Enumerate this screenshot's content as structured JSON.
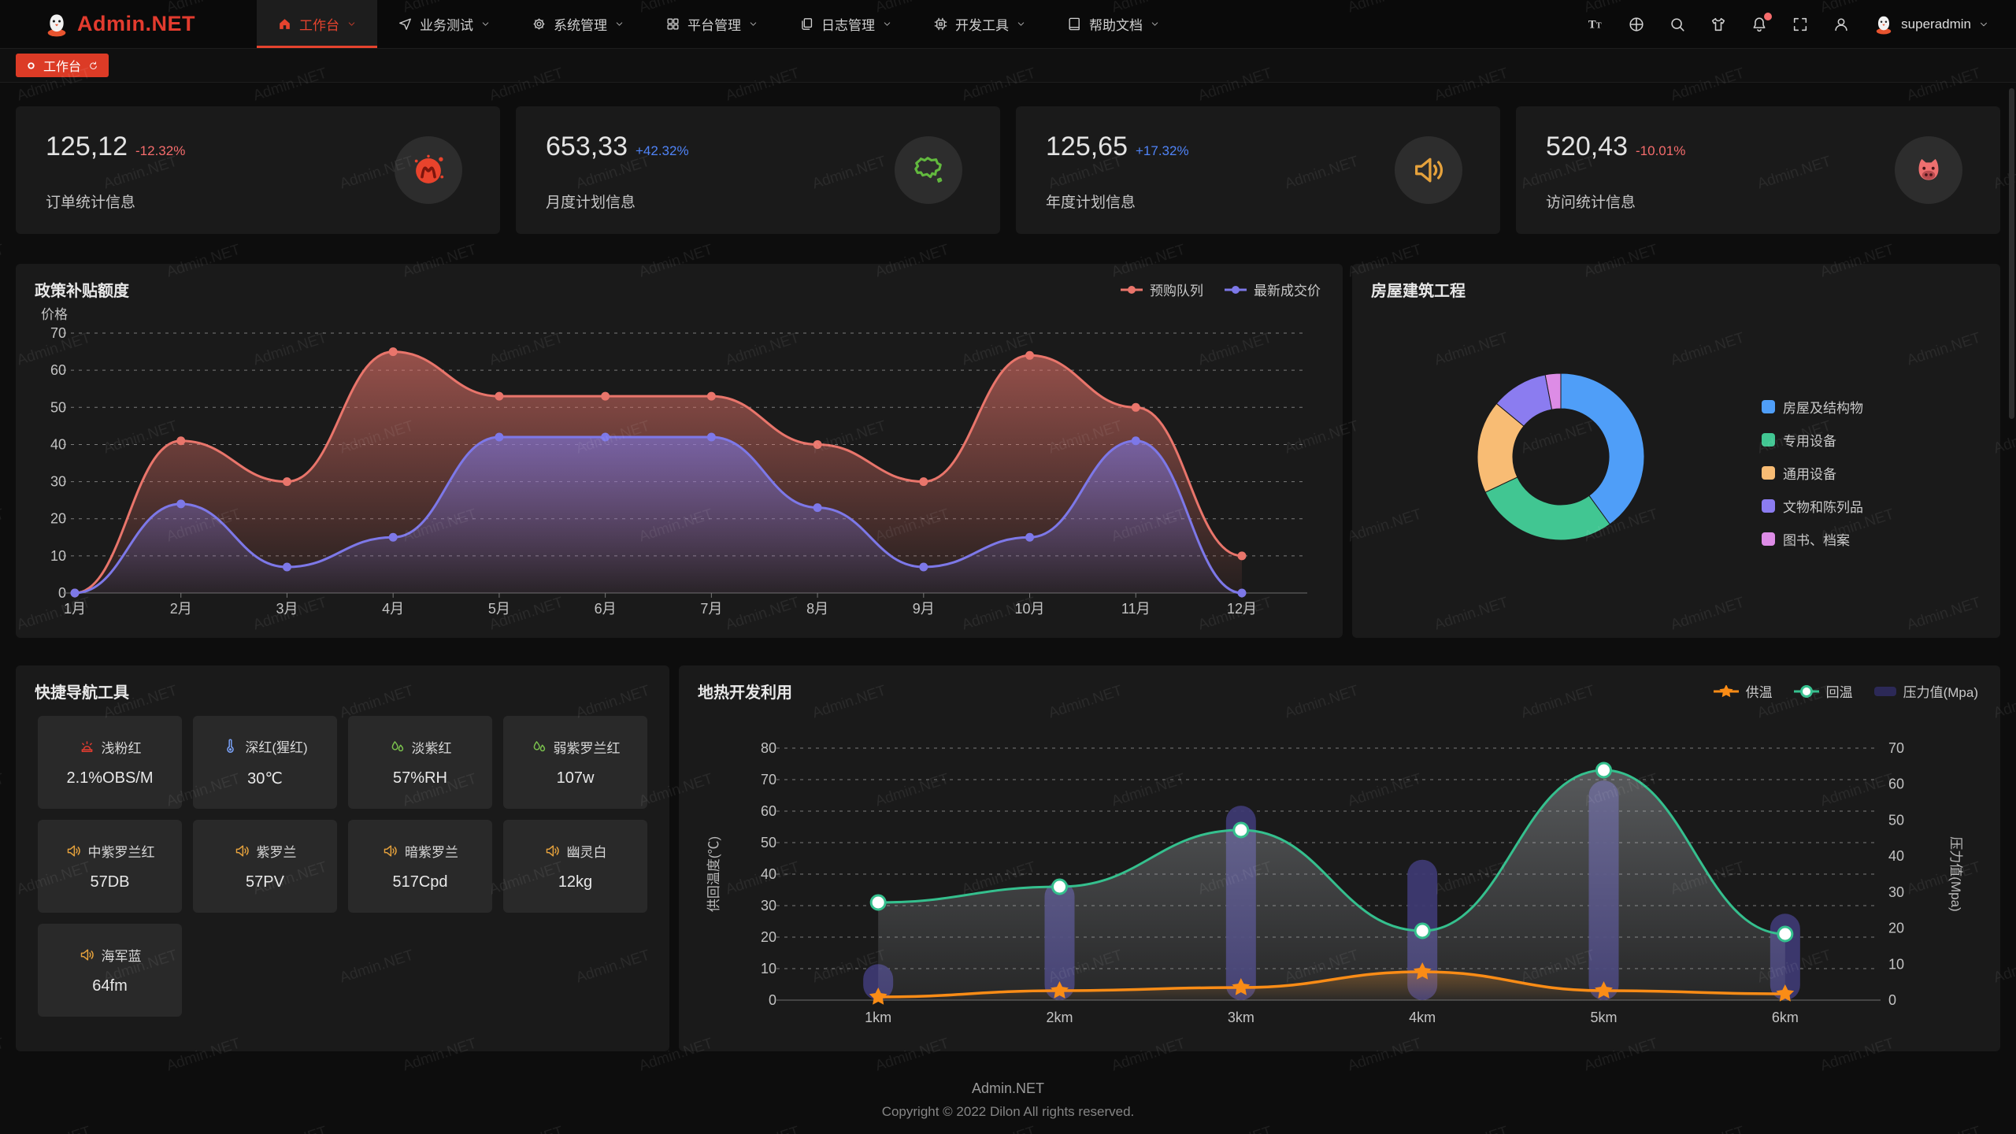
{
  "nav": {
    "logo_text": "Admin.NET",
    "logo_icon": "penguin",
    "user": "superadmin",
    "items": [
      {
        "label": "工作台",
        "icon": "home",
        "active": true
      },
      {
        "label": "业务测试",
        "icon": "send",
        "active": false
      },
      {
        "label": "系统管理",
        "icon": "gear",
        "active": false
      },
      {
        "label": "平台管理",
        "icon": "grid",
        "active": false
      },
      {
        "label": "日志管理",
        "icon": "copy",
        "active": false
      },
      {
        "label": "开发工具",
        "icon": "chip",
        "active": false
      },
      {
        "label": "帮助文档",
        "icon": "book",
        "active": false
      }
    ],
    "right_icons": [
      {
        "name": "font-size-icon",
        "icon": "fontsize",
        "badge": false
      },
      {
        "name": "language-icon",
        "icon": "language",
        "badge": false
      },
      {
        "name": "search-icon",
        "icon": "search",
        "badge": false
      },
      {
        "name": "theme-icon",
        "icon": "tshirt",
        "badge": false
      },
      {
        "name": "notification-icon",
        "icon": "bell",
        "badge": true
      },
      {
        "name": "fullscreen-icon",
        "icon": "fullscreen",
        "badge": false
      },
      {
        "name": "profile-icon",
        "icon": "user",
        "badge": false
      }
    ]
  },
  "tabbar": {
    "tabs": [
      {
        "label": "工作台",
        "dot_icon": "ring",
        "refresh_icon": "refresh",
        "active": true
      }
    ]
  },
  "stat_cards": [
    {
      "value": "125,12",
      "delta": "-12.32%",
      "delta_color": "#f56c6c",
      "label": "订单统计信息",
      "icon": "meetup",
      "icon_color": "#e8432c"
    },
    {
      "value": "653,33",
      "delta": "+42.32%",
      "delta_color": "#4f83f6",
      "label": "月度计划信息",
      "icon": "chinamap",
      "icon_color": "#62b93e"
    },
    {
      "value": "125,65",
      "delta": "+17.32%",
      "delta_color": "#4f83f6",
      "label": "年度计划信息",
      "icon": "speaker",
      "icon_color": "#e6a23c"
    },
    {
      "value": "520,43",
      "delta": "-10.01%",
      "delta_color": "#f56c6c",
      "label": "访问统计信息",
      "icon": "cat",
      "icon_color": "#ee6f6f"
    }
  ],
  "chart_data": [
    {
      "id": "subsidy",
      "type": "area",
      "title": "政策补贴额度",
      "y_axis_name": "价格",
      "y_ticks": [
        0,
        10,
        20,
        30,
        40,
        50,
        60,
        70
      ],
      "categories": [
        "1月",
        "2月",
        "3月",
        "4月",
        "5月",
        "6月",
        "7月",
        "8月",
        "9月",
        "10月",
        "11月",
        "12月"
      ],
      "legend_position": "top-right",
      "grid": "dashed",
      "series": [
        {
          "name": "预购队列",
          "color": "#e9756b",
          "values": [
            0,
            41,
            30,
            65,
            53,
            53,
            53,
            40,
            30,
            64,
            50,
            10
          ]
        },
        {
          "name": "最新成交价",
          "color": "#7d78e8",
          "values": [
            0,
            24,
            7,
            15,
            42,
            42,
            42,
            23,
            7,
            15,
            41,
            0
          ]
        }
      ]
    },
    {
      "id": "housing",
      "type": "pie",
      "title": "房屋建筑工程",
      "legend_position": "right",
      "slices": [
        {
          "name": "房屋及结构物",
          "color": "#4f9ef8",
          "value": 40
        },
        {
          "name": "专用设备",
          "color": "#41c692",
          "value": 28
        },
        {
          "name": "通用设备",
          "color": "#f8bc74",
          "value": 18
        },
        {
          "name": "文物和陈列品",
          "color": "#8b7cf0",
          "value": 11
        },
        {
          "name": "图书、档案",
          "color": "#dd8ce6",
          "value": 3
        }
      ]
    },
    {
      "id": "geothermal",
      "type": "mixed-line-bar",
      "title": "地热开发利用",
      "categories": [
        "1km",
        "2km",
        "3km",
        "4km",
        "5km",
        "6km"
      ],
      "left_axis": {
        "name": "供回温度(℃)",
        "ticks": [
          0,
          10,
          20,
          30,
          40,
          50,
          60,
          70,
          80
        ]
      },
      "right_axis": {
        "name": "压力值(Mpa)",
        "ticks": [
          0,
          10,
          20,
          30,
          40,
          50,
          60,
          70
        ]
      },
      "legend_position": "top-right",
      "grid": "dashed",
      "series": [
        {
          "name": "供温",
          "legend_label": "供温",
          "type": "line",
          "marker": "star",
          "axis": "left",
          "color": "#fa8c16",
          "values": [
            1,
            3,
            4,
            9,
            3,
            2
          ]
        },
        {
          "name": "回温",
          "legend_label": "回温",
          "type": "line",
          "marker": "circle",
          "axis": "left",
          "color": "#35c08e",
          "values": [
            31,
            36,
            54,
            22,
            73,
            21
          ]
        },
        {
          "name": "压力值",
          "legend_label": "压力值(Mpa)",
          "type": "bar",
          "axis": "right",
          "color": "#3e3973",
          "legend_color": "#2c2957",
          "values": [
            10,
            33,
            54,
            39,
            61,
            24
          ]
        }
      ]
    }
  ],
  "quick_nav": {
    "title": "快捷导航工具",
    "tiles": [
      {
        "name": "浅粉红",
        "value": "2.1%OBS/M",
        "icon": "alarm",
        "icon_color": "#e23c30"
      },
      {
        "name": "深红(猩红)",
        "value": "30℃",
        "icon": "thermometer",
        "icon_color": "#7aa2f8"
      },
      {
        "name": "淡紫红",
        "value": "57%RH",
        "icon": "humidity",
        "icon_color": "#7ac14d"
      },
      {
        "name": "弱紫罗兰红",
        "value": "107w",
        "icon": "humidity",
        "icon_color": "#7ac14d"
      },
      {
        "name": "中紫罗兰红",
        "value": "57DB",
        "icon": "speaker",
        "icon_color": "#e6a23c"
      },
      {
        "name": "紫罗兰",
        "value": "57PV",
        "icon": "speaker",
        "icon_color": "#e6a23c"
      },
      {
        "name": "暗紫罗兰",
        "value": "517Cpd",
        "icon": "speaker",
        "icon_color": "#e6a23c"
      },
      {
        "name": "幽灵白",
        "value": "12kg",
        "icon": "speaker",
        "icon_color": "#e6a23c"
      },
      {
        "name": "海军蓝",
        "value": "64fm",
        "icon": "speaker",
        "icon_color": "#e6a23c"
      }
    ]
  },
  "footer": {
    "line1": "Admin.NET",
    "line2": "Copyright © 2022 Dilon All rights reserved."
  },
  "watermark": {
    "text": "Admin.NET"
  }
}
